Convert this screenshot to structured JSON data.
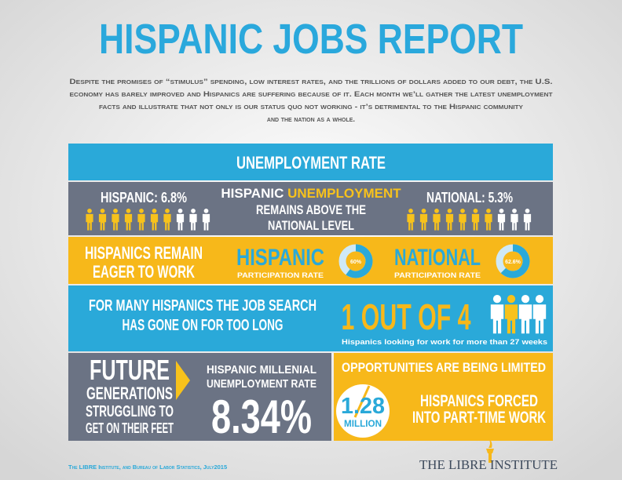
{
  "title": "HISPANIC JOBS REPORT",
  "intro": [
    "Despite the promises of “stimulus” spending, low interest rates, and the trillions of dollars added to our debt, the U.S.",
    "economy has barely improved and Hispanics are suffering because of it. Each month we’ll gather the latest unemployment",
    "facts and illustrate that not only is our status quo not working - it’s detrimental to the Hispanic community",
    "and the nation as a whole."
  ],
  "unemployment": {
    "heading": "UNEMPLOYMENT RATE",
    "hispanic": "HISPANIC: 6.8%",
    "national": "NATIONAL: 5.3%",
    "message": [
      "HISPANIC",
      "UNEMPLOYMENT",
      "REMAINS ABOVE THE",
      "NATIONAL LEVEL"
    ]
  },
  "participation": {
    "headline": [
      "HISPANICS REMAIN",
      "EAGER TO WORK"
    ],
    "hispanic": {
      "name": "HISPANIC",
      "caption": "PARTICIPATION RATE",
      "rate": {
        "value": 60,
        "label": "60%"
      }
    },
    "national": {
      "name": "NATIONAL",
      "caption": "PARTICIPATION RATE",
      "rate": {
        "value": 62.6,
        "label": "62.6%"
      }
    }
  },
  "job_search": {
    "headline": [
      "FOR MANY HISPANICS THE JOB SEARCH",
      "HAS GONE ON FOR TOO LONG"
    ],
    "stat": "1 OUT OF 4",
    "caption": "Hispanics looking for work for more than 27 weeks"
  },
  "millennials": {
    "headline": [
      "FUTURE",
      "GENERATIONS",
      "STRUGGLING TO",
      "GET ON THEIR FEET"
    ],
    "label": [
      "HISPANIC MILLENIAL",
      "UNEMPLOYMENT RATE"
    ],
    "rate": "8.34%"
  },
  "part_time": {
    "heading": "OPPORTUNITIES ARE BEING LIMITED",
    "count": "1.28",
    "unit": "MILLION",
    "label": [
      "HISPANICS FORCED",
      "INTO PART-TIME WORK"
    ]
  },
  "footer": {
    "source": "The LIBRE Institute, and Bureau of Labor Statistics, July2015",
    "logo": "THE LIBRE INSTITUTE"
  }
}
